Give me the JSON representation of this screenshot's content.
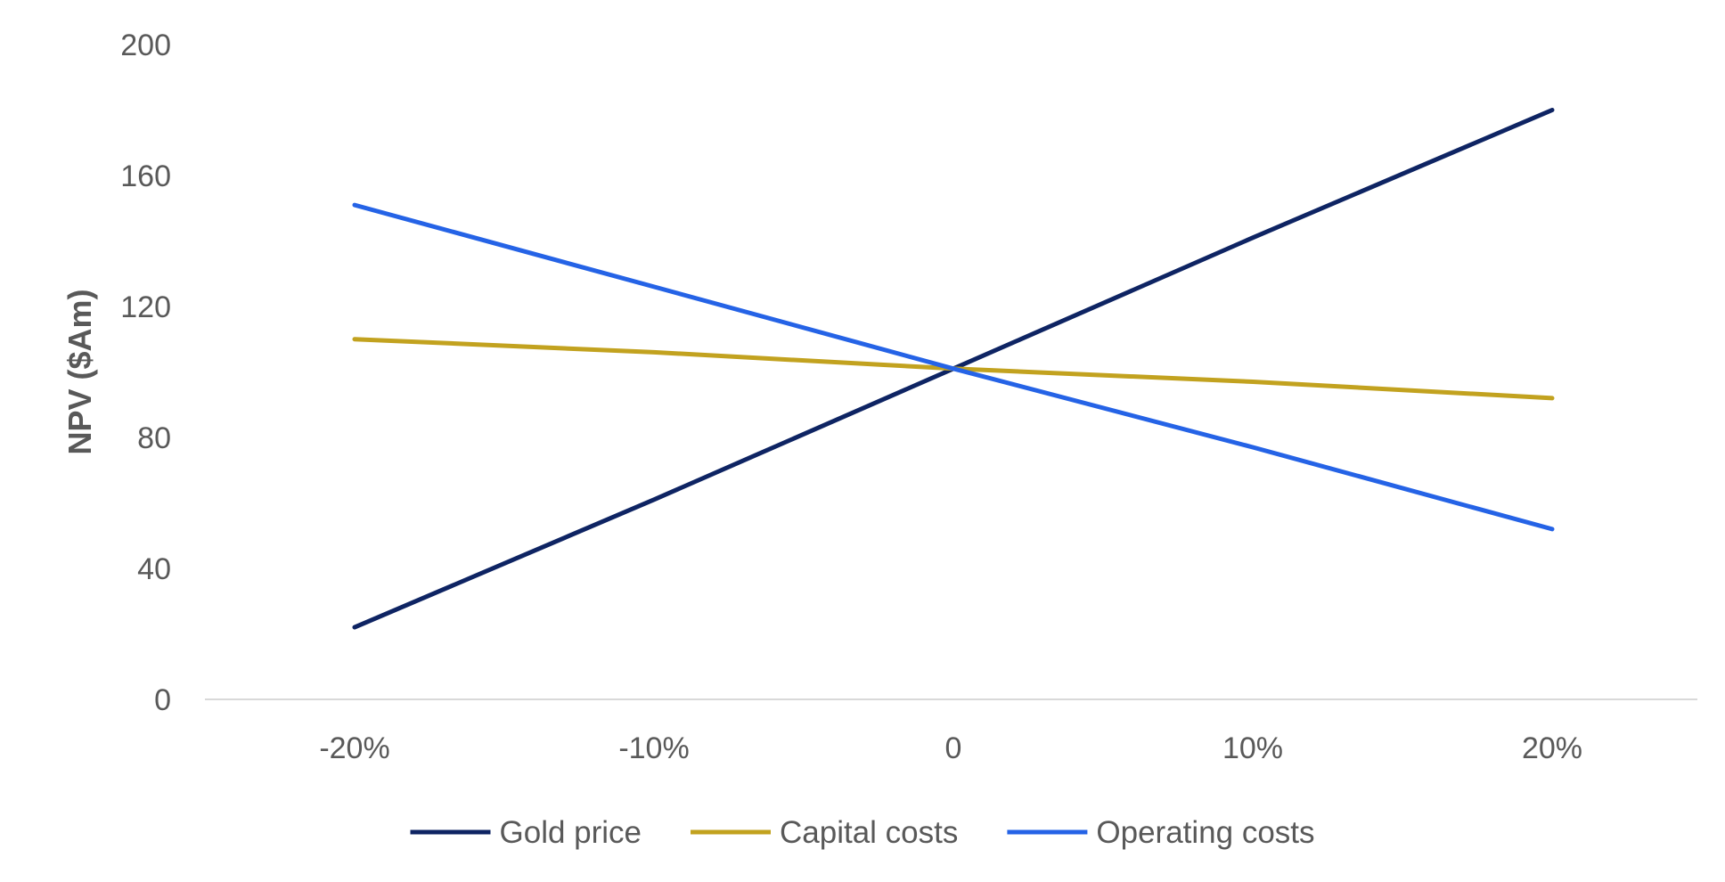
{
  "chart_data": {
    "type": "line",
    "title": "",
    "xlabel": "",
    "ylabel": "NPV ($Am)",
    "categories": [
      "-20%",
      "-10%",
      "0",
      "10%",
      "20%"
    ],
    "ylim": [
      0,
      200
    ],
    "yticks": [
      "0",
      "40",
      "80",
      "120",
      "160",
      "200"
    ],
    "grid": false,
    "legend_position": "bottom",
    "series": [
      {
        "name": "Gold price",
        "color": "#0e2463",
        "values": [
          22,
          61,
          101,
          141,
          180
        ]
      },
      {
        "name": "Capital costs",
        "color": "#c2a21f",
        "values": [
          110,
          106,
          101,
          97,
          92
        ]
      },
      {
        "name": "Operating costs",
        "color": "#2563e6",
        "values": [
          151,
          126,
          101,
          77,
          52
        ]
      }
    ]
  }
}
